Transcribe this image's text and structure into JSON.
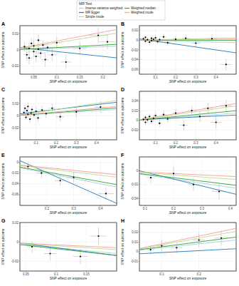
{
  "legend": {
    "title": "MR Test",
    "entries": [
      {
        "name": "Inverse variance weighted",
        "color": "#a6cee3"
      },
      {
        "name": "MR Egger",
        "color": "#1f78b4"
      },
      {
        "name": "Simple mode",
        "color": "#b2df8a"
      },
      {
        "name": "Weighted median",
        "color": "#33a02c"
      },
      {
        "name": "Weighted mode",
        "color": "#fb9a99"
      }
    ]
  },
  "chart_data": [
    {
      "type": "scatter",
      "title": "A",
      "x_label": "SNP effect on exposure",
      "y_label": "SNP effect on outcome",
      "grid": true,
      "xlim": [
        0.02,
        0.23
      ],
      "xticks": [
        0.05,
        0.1,
        0.15,
        0.2
      ],
      "ylim": [
        -0.03,
        0.03
      ],
      "yticks": [
        -0.02,
        0,
        0.02
      ],
      "x": [
        0.03,
        0.035,
        0.04,
        0.04,
        0.045,
        0.05,
        0.05,
        0.055,
        0.06,
        0.06,
        0.065,
        0.07,
        0.075,
        0.08,
        0.09,
        0.1,
        0.12,
        0.15,
        0.19,
        0.21
      ],
      "values": [
        0.004,
        -0.006,
        0.002,
        -0.01,
        0.008,
        -0.002,
        0.005,
        -0.008,
        0.001,
        0.012,
        -0.004,
        0.006,
        -0.012,
        0.003,
        -0.006,
        0.009,
        -0.015,
        0.002,
        0.018,
        0.01
      ],
      "x_err": [
        0.005,
        0.006,
        0.005,
        0.007,
        0.006,
        0.008,
        0.006,
        0.007,
        0.008,
        0.006,
        0.009,
        0.007,
        0.008,
        0.009,
        0.01,
        0.01,
        0.012,
        0.015,
        0.02,
        0.018
      ],
      "y_err": [
        0.006,
        0.007,
        0.006,
        0.008,
        0.007,
        0.006,
        0.008,
        0.007,
        0.006,
        0.008,
        0.007,
        0.006,
        0.009,
        0.007,
        0.008,
        0.007,
        0.009,
        0.008,
        0.01,
        0.009
      ],
      "fits": [
        {
          "slope": 0.02,
          "intercept": 0
        },
        {
          "slope": -0.06,
          "intercept": 0.004
        },
        {
          "slope": 0.09,
          "intercept": 0
        },
        {
          "slope": 0.03,
          "intercept": 0
        },
        {
          "slope": 0.11,
          "intercept": 0
        }
      ]
    },
    {
      "type": "scatter",
      "title": "B",
      "x_label": "SNP effect on exposure",
      "y_label": "SNP effect on outcome",
      "grid": true,
      "xlim": [
        0.02,
        0.5
      ],
      "xticks": [
        0.1,
        0.2,
        0.3,
        0.4
      ],
      "ylim": [
        -0.07,
        0.03
      ],
      "yticks": [
        -0.06,
        -0.04,
        -0.02,
        0,
        0.02
      ],
      "x": [
        0.04,
        0.05,
        0.05,
        0.06,
        0.07,
        0.08,
        0.08,
        0.09,
        0.1,
        0.11,
        0.12,
        0.14,
        0.16,
        0.2,
        0.25,
        0.3,
        0.38,
        0.45
      ],
      "values": [
        0.003,
        -0.002,
        0.006,
        0.001,
        -0.004,
        0.004,
        -0.001,
        0.002,
        0.005,
        -0.003,
        0.001,
        0.007,
        -0.005,
        0.002,
        0.004,
        -0.006,
        0.003,
        -0.05
      ],
      "x_err": [
        0.006,
        0.007,
        0.006,
        0.008,
        0.008,
        0.009,
        0.008,
        0.01,
        0.01,
        0.011,
        0.012,
        0.013,
        0.014,
        0.016,
        0.02,
        0.022,
        0.025,
        0.03
      ],
      "y_err": [
        0.004,
        0.005,
        0.004,
        0.005,
        0.006,
        0.005,
        0.004,
        0.005,
        0.006,
        0.005,
        0.006,
        0.006,
        0.007,
        0.006,
        0.008,
        0.008,
        0.009,
        0.012
      ],
      "fits": [
        {
          "slope": -0.01,
          "intercept": 0
        },
        {
          "slope": -0.06,
          "intercept": 0.004
        },
        {
          "slope": 0.01,
          "intercept": 0
        },
        {
          "slope": 0,
          "intercept": 0
        },
        {
          "slope": 0.005,
          "intercept": 0
        }
      ]
    },
    {
      "type": "scatter",
      "title": "C",
      "x_label": "SNP effect on exposure",
      "y_label": "SNP effect on outcome",
      "grid": true,
      "xlim": [
        0.02,
        0.5
      ],
      "xticks": [
        0.1,
        0.2,
        0.3,
        0.4
      ],
      "ylim": [
        -0.04,
        0.04
      ],
      "yticks": [
        -0.02,
        0,
        0.02
      ],
      "x": [
        0.04,
        0.045,
        0.05,
        0.055,
        0.06,
        0.06,
        0.07,
        0.075,
        0.08,
        0.09,
        0.1,
        0.11,
        0.13,
        0.15,
        0.18,
        0.22,
        0.3,
        0.42
      ],
      "values": [
        0.005,
        0.012,
        -0.003,
        0.008,
        0.002,
        0.015,
        -0.006,
        0.004,
        0.01,
        0.001,
        0.007,
        -0.004,
        0.009,
        0.003,
        0.012,
        -0.002,
        0.006,
        0.014
      ],
      "x_err": [
        0.006,
        0.006,
        0.007,
        0.007,
        0.008,
        0.007,
        0.009,
        0.008,
        0.009,
        0.01,
        0.011,
        0.012,
        0.013,
        0.015,
        0.018,
        0.02,
        0.025,
        0.03
      ],
      "y_err": [
        0.005,
        0.006,
        0.005,
        0.006,
        0.005,
        0.007,
        0.006,
        0.005,
        0.006,
        0.006,
        0.007,
        0.006,
        0.007,
        0.007,
        0.008,
        0.008,
        0.009,
        0.01
      ],
      "fits": [
        {
          "slope": 0.02,
          "intercept": 0
        },
        {
          "slope": 0.04,
          "intercept": 0.002
        },
        {
          "slope": 0.05,
          "intercept": 0
        },
        {
          "slope": 0.025,
          "intercept": 0
        },
        {
          "slope": 0.03,
          "intercept": 0
        }
      ]
    },
    {
      "type": "scatter",
      "title": "D",
      "x_label": "SNP effect on exposure",
      "y_label": "SNP effect on outcome",
      "grid": true,
      "xlim": [
        0.02,
        0.5
      ],
      "xticks": [
        0.1,
        0.2,
        0.3,
        0.4
      ],
      "ylim": [
        -0.04,
        0.06
      ],
      "yticks": [
        -0.02,
        0,
        0.02,
        0.04
      ],
      "x": [
        0.04,
        0.05,
        0.05,
        0.06,
        0.07,
        0.08,
        0.09,
        0.1,
        0.12,
        0.14,
        0.16,
        0.2,
        0.24,
        0.28,
        0.32,
        0.36,
        0.4,
        0.45
      ],
      "values": [
        0.002,
        -0.004,
        0.006,
        0.001,
        0.008,
        -0.002,
        0.004,
        0.01,
        -0.006,
        0.012,
        0.003,
        0.015,
        -0.01,
        0.02,
        0.008,
        0.025,
        -0.004,
        0.03
      ],
      "x_err": [
        0.006,
        0.007,
        0.006,
        0.008,
        0.008,
        0.009,
        0.01,
        0.01,
        0.012,
        0.013,
        0.014,
        0.016,
        0.02,
        0.022,
        0.024,
        0.026,
        0.028,
        0.03
      ],
      "y_err": [
        0.005,
        0.006,
        0.005,
        0.006,
        0.006,
        0.006,
        0.007,
        0.007,
        0.008,
        0.008,
        0.008,
        0.009,
        0.01,
        0.01,
        0.011,
        0.012,
        0.012,
        0.013
      ],
      "fits": [
        {
          "slope": 0.03,
          "intercept": 0
        },
        {
          "slope": 0.02,
          "intercept": 0.001
        },
        {
          "slope": 0.06,
          "intercept": 0
        },
        {
          "slope": 0.04,
          "intercept": 0
        },
        {
          "slope": 0.07,
          "intercept": 0
        }
      ]
    },
    {
      "type": "scatter",
      "title": "E",
      "x_label": "SNP effect on exposure",
      "y_label": "SNP effect on outcome",
      "grid": true,
      "xlim": [
        0.1,
        0.46
      ],
      "xticks": [
        0.2,
        0.3,
        0.4
      ],
      "ylim": [
        -0.08,
        0.01
      ],
      "yticks": [
        -0.06,
        -0.04,
        -0.02,
        0
      ],
      "x": [
        0.13,
        0.18,
        0.25,
        0.3,
        0.42
      ],
      "values": [
        -0.008,
        -0.02,
        -0.034,
        -0.028,
        -0.058
      ],
      "x_err": [
        0.015,
        0.02,
        0.02,
        0.025,
        0.03
      ],
      "y_err": [
        0.008,
        0.009,
        0.01,
        0.01,
        0.012
      ],
      "fits": [
        {
          "slope": -0.1,
          "intercept": 0
        },
        {
          "slope": -0.22,
          "intercept": 0.025
        },
        {
          "slope": -0.06,
          "intercept": 0
        },
        {
          "slope": -0.09,
          "intercept": 0
        },
        {
          "slope": -0.05,
          "intercept": 0
        }
      ]
    },
    {
      "type": "scatter",
      "title": "F",
      "x_label": "SNP effect on exposure",
      "y_label": "SNP effect on outcome",
      "grid": true,
      "xlim": [
        0.08,
        0.42
      ],
      "xticks": [
        0.1,
        0.2,
        0.3,
        0.4
      ],
      "ylim": [
        -0.05,
        0.02
      ],
      "yticks": [
        -0.04,
        -0.02,
        0
      ],
      "x": [
        0.12,
        0.2,
        0.27,
        0.36
      ],
      "values": [
        -0.01,
        -0.004,
        -0.02,
        -0.03
      ],
      "x_err": [
        0.015,
        0.02,
        0.02,
        0.025
      ],
      "y_err": [
        0.008,
        0.01,
        0.01,
        0.012
      ],
      "fits": [
        {
          "slope": -0.06,
          "intercept": 0
        },
        {
          "slope": -0.1,
          "intercept": 0.008
        },
        {
          "slope": -0.03,
          "intercept": 0
        },
        {
          "slope": -0.05,
          "intercept": 0
        },
        {
          "slope": -0.02,
          "intercept": 0
        }
      ]
    },
    {
      "type": "scatter",
      "title": "G",
      "x_label": "SNP effect on exposure",
      "y_label": "SNP effect on outcome",
      "grid": true,
      "xlim": [
        0.04,
        0.2
      ],
      "xticks": [
        0.05,
        0.1,
        0.15
      ],
      "ylim": [
        -0.03,
        0.02
      ],
      "yticks": [
        -0.02,
        0,
        0.02
      ],
      "x": [
        0.06,
        0.09,
        0.14,
        0.17
      ],
      "values": [
        -0.005,
        -0.012,
        -0.015,
        0.006
      ],
      "x_err": [
        0.008,
        0.01,
        0.012,
        0.014
      ],
      "y_err": [
        0.006,
        0.007,
        0.008,
        0.009
      ],
      "fits": [
        {
          "slope": -0.06,
          "intercept": 0
        },
        {
          "slope": -0.08,
          "intercept": 0.002
        },
        {
          "slope": -0.04,
          "intercept": 0
        },
        {
          "slope": -0.07,
          "intercept": 0
        },
        {
          "slope": -0.03,
          "intercept": 0
        }
      ]
    },
    {
      "type": "scatter",
      "title": "H",
      "x_label": "SNP effect on exposure",
      "y_label": "SNP effect on outcome",
      "grid": true,
      "xlim": [
        0.04,
        0.3
      ],
      "xticks": [
        0.1,
        0.2
      ],
      "ylim": [
        -0.02,
        0.03
      ],
      "yticks": [
        -0.01,
        0,
        0.01,
        0.02
      ],
      "x": [
        0.07,
        0.1,
        0.14,
        0.2,
        0.26
      ],
      "values": [
        0.002,
        0.006,
        0.004,
        0.012,
        0.014
      ],
      "x_err": [
        0.01,
        0.012,
        0.014,
        0.016,
        0.02
      ],
      "y_err": [
        0.005,
        0.006,
        0.006,
        0.007,
        0.008
      ],
      "fits": [
        {
          "slope": 0.04,
          "intercept": 0
        },
        {
          "slope": 0.02,
          "intercept": -0.003
        },
        {
          "slope": 0.07,
          "intercept": 0
        },
        {
          "slope": 0.05,
          "intercept": 0
        },
        {
          "slope": 0.08,
          "intercept": 0
        }
      ]
    }
  ]
}
